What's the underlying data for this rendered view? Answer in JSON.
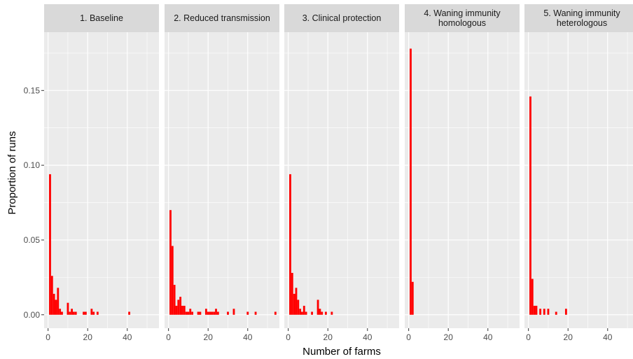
{
  "chart_data": {
    "type": "bar",
    "xlabel": "Number of farms",
    "ylabel": "Proportion of runs",
    "xlim": [
      -2,
      56
    ],
    "ylim": [
      -0.009,
      0.189
    ],
    "x_ticks": [
      0,
      20,
      40
    ],
    "y_ticks": [
      0.0,
      0.05,
      0.1,
      0.15
    ],
    "y_tick_labels": [
      "0.00",
      "0.05",
      "0.10",
      "0.15"
    ],
    "bin_width": 1,
    "grid": true,
    "bar_color": "#ff0000",
    "panel_bg": "#ebebeb",
    "strip_bg": "#d9d9d9",
    "facets": [
      {
        "title": [
          "1. Baseline"
        ],
        "bars": [
          [
            1,
            0.094
          ],
          [
            2,
            0.026
          ],
          [
            3,
            0.014
          ],
          [
            4,
            0.01
          ],
          [
            5,
            0.018
          ],
          [
            6,
            0.004
          ],
          [
            7,
            0.002
          ],
          [
            10,
            0.008
          ],
          [
            11,
            0.002
          ],
          [
            12,
            0.004
          ],
          [
            13,
            0.002
          ],
          [
            14,
            0.002
          ],
          [
            18,
            0.002
          ],
          [
            19,
            0.002
          ],
          [
            22,
            0.004
          ],
          [
            23,
            0.002
          ],
          [
            25,
            0.002
          ],
          [
            41,
            0.002
          ]
        ]
      },
      {
        "title": [
          "2. Reduced transmission"
        ],
        "bars": [
          [
            1,
            0.07
          ],
          [
            2,
            0.046
          ],
          [
            3,
            0.02
          ],
          [
            4,
            0.006
          ],
          [
            5,
            0.01
          ],
          [
            6,
            0.012
          ],
          [
            7,
            0.006
          ],
          [
            8,
            0.006
          ],
          [
            9,
            0.002
          ],
          [
            10,
            0.002
          ],
          [
            11,
            0.004
          ],
          [
            12,
            0.002
          ],
          [
            15,
            0.002
          ],
          [
            16,
            0.002
          ],
          [
            19,
            0.004
          ],
          [
            20,
            0.002
          ],
          [
            21,
            0.002
          ],
          [
            22,
            0.002
          ],
          [
            23,
            0.002
          ],
          [
            24,
            0.004
          ],
          [
            25,
            0.002
          ],
          [
            30,
            0.002
          ],
          [
            33,
            0.004
          ],
          [
            40,
            0.002
          ],
          [
            44,
            0.002
          ],
          [
            54,
            0.002
          ]
        ]
      },
      {
        "title": [
          "3. Clinical protection"
        ],
        "bars": [
          [
            1,
            0.094
          ],
          [
            2,
            0.028
          ],
          [
            3,
            0.014
          ],
          [
            4,
            0.018
          ],
          [
            5,
            0.01
          ],
          [
            6,
            0.004
          ],
          [
            7,
            0.002
          ],
          [
            8,
            0.006
          ],
          [
            9,
            0.002
          ],
          [
            12,
            0.002
          ],
          [
            15,
            0.01
          ],
          [
            16,
            0.004
          ],
          [
            17,
            0.002
          ],
          [
            19,
            0.002
          ],
          [
            22,
            0.002
          ]
        ]
      },
      {
        "title": [
          "4. Waning immunity",
          "homologous"
        ],
        "bars": [
          [
            1,
            0.178
          ],
          [
            2,
            0.022
          ]
        ]
      },
      {
        "title": [
          "5. Waning immunity",
          "heterologous"
        ],
        "bars": [
          [
            1,
            0.146
          ],
          [
            2,
            0.024
          ],
          [
            3,
            0.006
          ],
          [
            4,
            0.006
          ],
          [
            6,
            0.004
          ],
          [
            8,
            0.004
          ],
          [
            10,
            0.004
          ],
          [
            14,
            0.002
          ],
          [
            19,
            0.004
          ]
        ]
      }
    ]
  }
}
